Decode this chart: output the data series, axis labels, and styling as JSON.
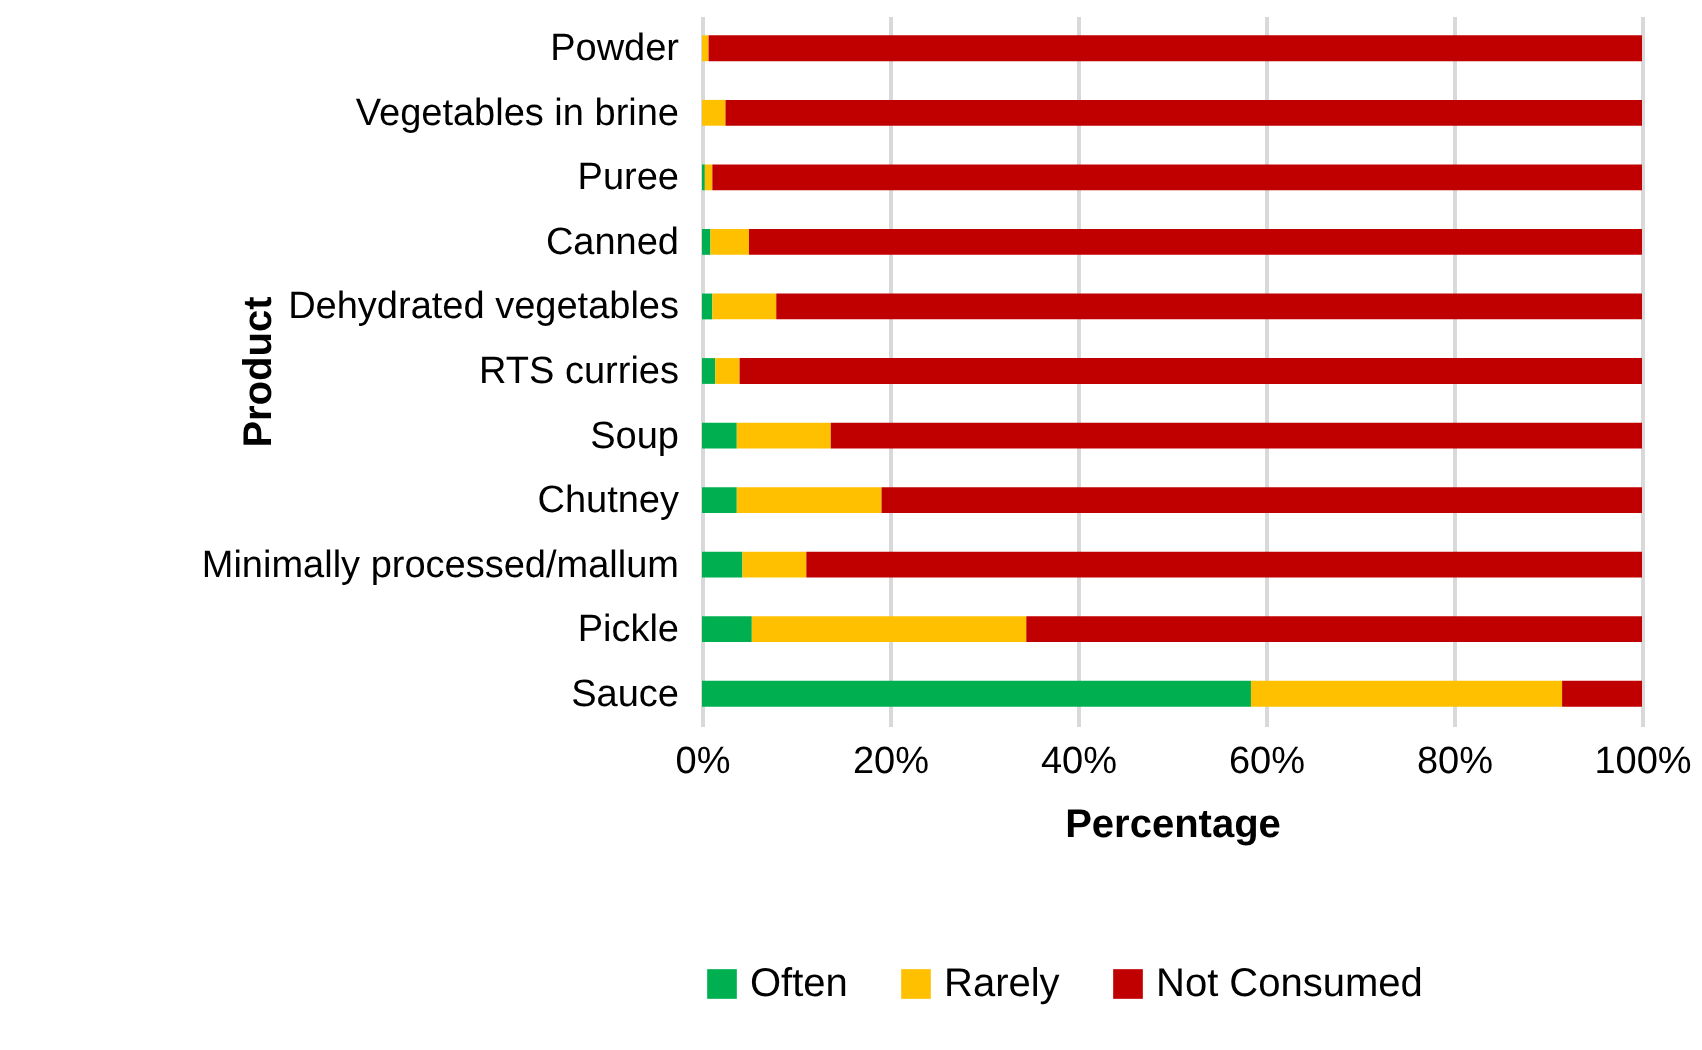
{
  "chart_data": {
    "type": "bar",
    "orientation": "horizontal",
    "stacked": true,
    "xlabel": "Percentage",
    "ylabel": "Product",
    "categories": [
      "Powder",
      "Vegetables in brine",
      "Puree",
      "Canned",
      "Dehydrated vegetables",
      "RTS curries",
      "Soup",
      "Chutney",
      "Minimally processed/mallum",
      "Pickle",
      "Sauce"
    ],
    "series": [
      {
        "name": "Often",
        "color": "#00b050",
        "values": [
          0,
          0,
          0.3,
          0.9,
          1.1,
          1.4,
          3.7,
          3.7,
          4.3,
          5.3,
          58.4
        ]
      },
      {
        "name": "Rarely",
        "color": "#ffc000",
        "values": [
          0.7,
          2.5,
          0.8,
          4.1,
          6.8,
          2.6,
          10.0,
          15.4,
          6.8,
          29.2,
          33.1
        ]
      },
      {
        "name": "Not Consumed",
        "color": "#c00000",
        "values": [
          99.3,
          97.5,
          98.9,
          95.0,
          92.1,
          96.0,
          86.3,
          80.9,
          88.9,
          65.5,
          8.5
        ]
      }
    ],
    "xlim": [
      0,
      100
    ],
    "xticks": [
      {
        "value": 0,
        "label": "0%"
      },
      {
        "value": 20,
        "label": "20%"
      },
      {
        "value": 40,
        "label": "40%"
      },
      {
        "value": 60,
        "label": "60%"
      },
      {
        "value": 80,
        "label": "80%"
      },
      {
        "value": 100,
        "label": "100%"
      }
    ],
    "grid": "x",
    "legend": "bottom"
  }
}
